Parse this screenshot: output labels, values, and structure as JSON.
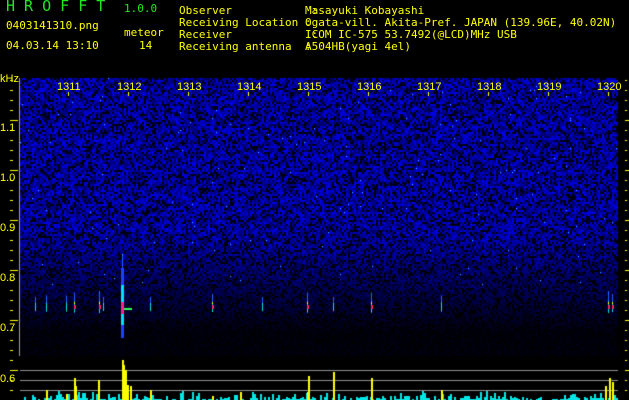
{
  "header": {
    "app_title": "H R O F F T",
    "version": "1.0.0",
    "filename": "0403141310.png",
    "datetime": "04.03.14 13:10",
    "meteor_label": "meteor",
    "meteor_count": "14"
  },
  "info": {
    "observer_label": "Observer            :",
    "observer": "Masayuki Kobayashi",
    "location_label": "Receiving Location :",
    "location": "Ogata-vill. Akita-Pref. JAPAN (139.96E, 40.02N)",
    "receiver_label": "Receiver            :",
    "receiver": "ICOM IC-575 53.7492(@LCD)MHz USB",
    "antenna_label": "Receiving antenna  :",
    "antenna": "A504HB(yagi 4el)"
  },
  "axes": {
    "y_unit": "kHz",
    "y_ticks": [
      "1.1",
      "1.0",
      "0.9",
      "0.8",
      "0.7",
      "0.6"
    ],
    "x_ticks": [
      "1311",
      "1312",
      "1313",
      "1314",
      "1315",
      "1316",
      "1317",
      "1318",
      "1319",
      "1320"
    ]
  },
  "colors": {
    "text": "#ffff00",
    "title": "#22e822",
    "noise": "#1a1aff",
    "bars": "#ffff00",
    "baseline": "#00e5e5"
  }
}
